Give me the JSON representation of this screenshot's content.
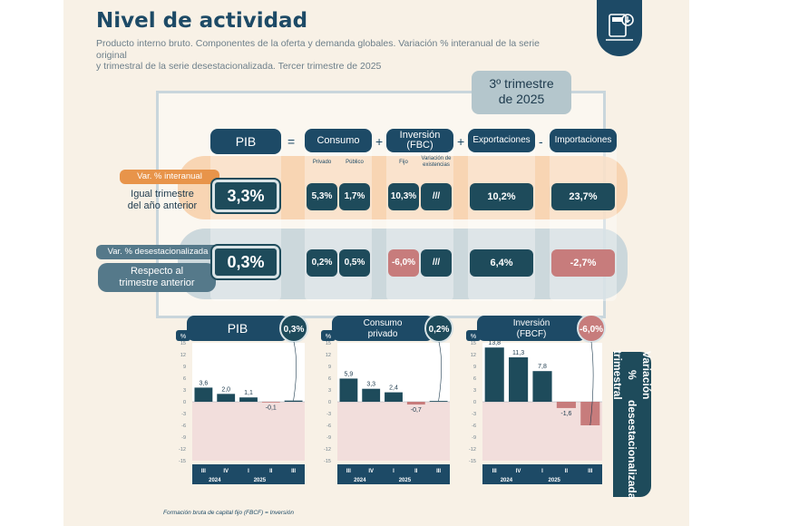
{
  "header": {
    "title": "Nivel de actividad",
    "subtitle_line1": "Producto interno bruto. Componentes de la oferta y demanda globales. Variación % interanual de la serie original",
    "subtitle_line2": "y trimestral de la serie desestacionalizada. Tercer trimestre de 2025"
  },
  "badge": {
    "line1": "3º trimestre",
    "line2": "de 2025"
  },
  "table": {
    "operators": {
      "eq": "=",
      "plus1": "+",
      "plus2": "+",
      "minus": "-"
    },
    "columns": {
      "pib": "PIB",
      "consumo": "Consumo",
      "consumo_privado": "Privado",
      "consumo_publico": "Público",
      "inversion_l1": "Inversión",
      "inversion_l2": "(FBC)",
      "fijo": "Fijo",
      "var_exist_l1": "Variación de",
      "var_exist_l2": "existencias",
      "exportaciones": "Exportaciones",
      "importaciones": "Importaciones"
    },
    "row_interanual": {
      "tag": "Var. % interanual",
      "label_l1": "Igual trimestre",
      "label_l2": "del año anterior",
      "pib": "3,3%",
      "privado": "5,3%",
      "publico": "1,7%",
      "fijo": "10,3%",
      "existencias": "///",
      "exportaciones": "10,2%",
      "importaciones": "23,7%"
    },
    "row_desest": {
      "tag": "Var. % desestacionalizada",
      "label_l1": "Respecto al",
      "label_l2": "trimestre anterior",
      "pib": "0,3%",
      "privado": "0,2%",
      "publico": "0,5%",
      "fijo": "-6,0%",
      "existencias": "///",
      "exportaciones": "6,4%",
      "importaciones": "-2,7%"
    }
  },
  "colors": {
    "navy": "#1d4a66",
    "teal": "#1e4b5b",
    "negative": "#c77c7c",
    "orange": "#f7cfa8",
    "blue_band": "#c3d2d8"
  },
  "side_label_l1": "Variación % trimestral",
  "side_label_l2": "desestacionalizada",
  "footnote": "Formación bruta de capital fijo (FBCF) = Inversión",
  "chart_data": [
    {
      "type": "bar",
      "title": "PIB",
      "badge": "0,3%",
      "ylabel": "%",
      "categories": [
        "III",
        "IV",
        "I",
        "II",
        "III"
      ],
      "groups": [
        "2024",
        "2025"
      ],
      "values": [
        3.6,
        2.0,
        1.1,
        -0.1,
        0.3
      ],
      "labels": [
        "3,6",
        "2,0",
        "1,1",
        "-0,1",
        ""
      ],
      "yticks": [
        15,
        12,
        9,
        6,
        3,
        0,
        -3,
        -6,
        -9,
        -12,
        -15
      ],
      "ylim": [
        -15,
        15
      ]
    },
    {
      "type": "bar",
      "title_l1": "Consumo",
      "title_l2": "privado",
      "badge": "0,2%",
      "ylabel": "%",
      "categories": [
        "III",
        "IV",
        "I",
        "II",
        "III"
      ],
      "groups": [
        "2024",
        "2025"
      ],
      "values": [
        5.9,
        3.3,
        2.4,
        -0.7,
        0.2
      ],
      "labels": [
        "5,9",
        "3,3",
        "2,4",
        "-0,7",
        ""
      ],
      "yticks": [
        15,
        12,
        9,
        6,
        3,
        0,
        -3,
        -6,
        -9,
        -12,
        -15
      ],
      "ylim": [
        -15,
        15
      ]
    },
    {
      "type": "bar",
      "title_l1": "Inversión",
      "title_l2": "(FBCF)",
      "badge": "-6,0%",
      "ylabel": "%",
      "categories": [
        "III",
        "IV",
        "I",
        "II",
        "III"
      ],
      "groups": [
        "2024",
        "2025"
      ],
      "values": [
        13.8,
        11.3,
        7.8,
        -1.6,
        -6.0
      ],
      "labels": [
        "13,8",
        "11,3",
        "7,8",
        "-1,6",
        ""
      ],
      "yticks": [
        15,
        12,
        9,
        6,
        3,
        0,
        -3,
        -6,
        -9,
        -12,
        -15
      ],
      "ylim": [
        -15,
        15
      ]
    }
  ]
}
